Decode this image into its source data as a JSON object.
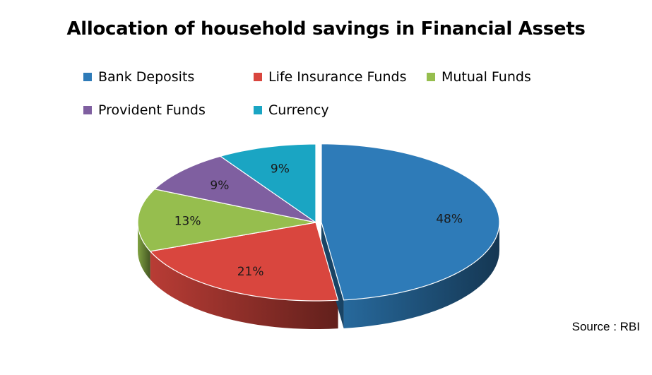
{
  "chart_data": {
    "type": "pie",
    "title": "Allocation of household  savings in Financial Assets",
    "categories": [
      "Bank Deposits",
      "Life Insurance Funds",
      "Mutual Funds",
      "Provident Funds",
      "Currency"
    ],
    "values": [
      48,
      21,
      13,
      9,
      9
    ],
    "value_labels": [
      "48%",
      "21%",
      "13%",
      "9%",
      "9%"
    ],
    "colors": [
      "#2E7BB8",
      "#D9463E",
      "#96BE4E",
      "#7F5FA0",
      "#1AA5C3"
    ],
    "exploded_slice": "Bank Deposits",
    "legend_position": "top",
    "style": "3d"
  },
  "footer": {
    "source": "Source : RBI"
  }
}
